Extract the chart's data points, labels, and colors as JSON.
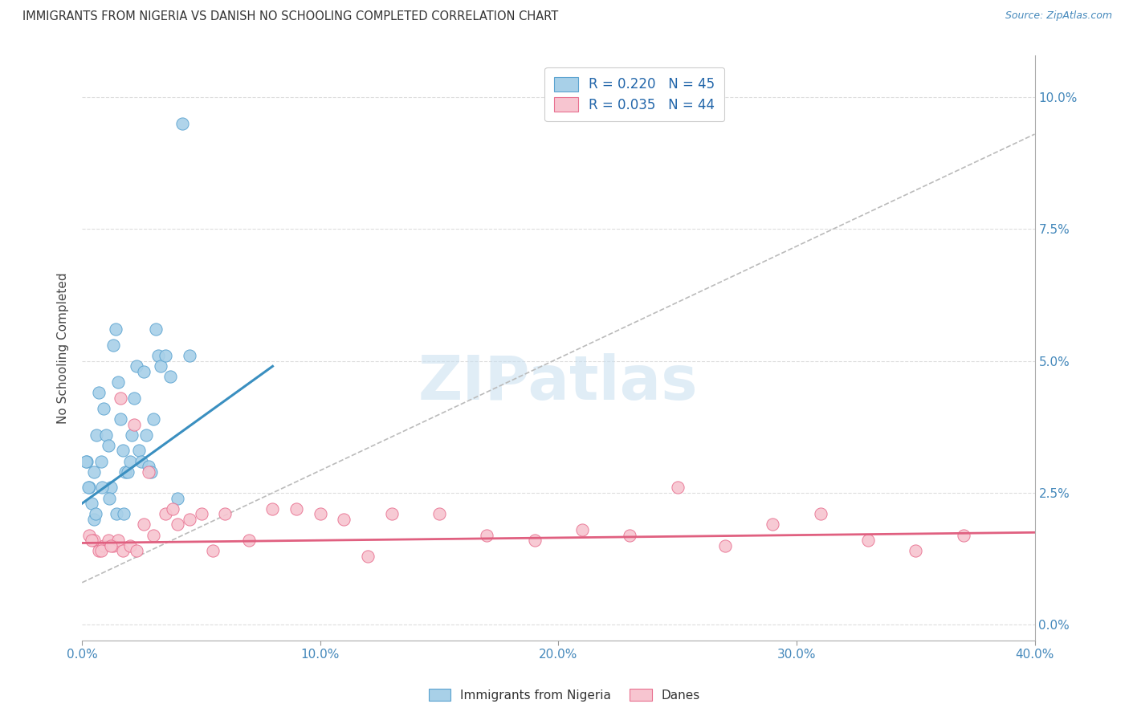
{
  "title": "IMMIGRANTS FROM NIGERIA VS DANISH NO SCHOOLING COMPLETED CORRELATION CHART",
  "source": "Source: ZipAtlas.com",
  "ylabel": "No Schooling Completed",
  "legend_line1": "R = 0.220   N = 45",
  "legend_line2": "R = 0.035   N = 44",
  "legend_label1": "Immigrants from Nigeria",
  "legend_label2": "Danes",
  "blue_color": "#A8D0E8",
  "blue_edge": "#5BA3D0",
  "pink_color": "#F7C5D0",
  "pink_edge": "#E87090",
  "trendline_blue": "#3A8FC0",
  "trendline_pink": "#E06080",
  "trendline_gray": "#BBBBBB",
  "watermark": "ZIPatlas",
  "xlim": [
    0.0,
    40.0
  ],
  "ylim": [
    -0.3,
    10.8
  ],
  "xtick_positions": [
    0,
    10,
    20,
    30,
    40
  ],
  "ytick_vals": [
    0.0,
    2.5,
    5.0,
    7.5,
    10.0
  ],
  "nigeria_x": [
    0.2,
    0.3,
    0.4,
    0.5,
    0.5,
    0.6,
    0.7,
    0.8,
    0.9,
    1.0,
    1.1,
    1.2,
    1.3,
    1.4,
    1.5,
    1.6,
    1.7,
    1.8,
    1.9,
    2.0,
    2.1,
    2.2,
    2.3,
    2.4,
    2.5,
    2.6,
    2.7,
    2.8,
    2.9,
    3.0,
    3.1,
    3.2,
    3.3,
    3.5,
    3.7,
    4.0,
    4.2,
    4.5,
    0.15,
    0.25,
    0.55,
    0.85,
    1.15,
    1.45,
    1.75
  ],
  "nigeria_y": [
    3.1,
    2.6,
    2.3,
    2.9,
    2.0,
    3.6,
    4.4,
    3.1,
    4.1,
    3.6,
    3.4,
    2.6,
    5.3,
    5.6,
    4.6,
    3.9,
    3.3,
    2.9,
    2.9,
    3.1,
    3.6,
    4.3,
    4.9,
    3.3,
    3.1,
    4.8,
    3.6,
    3.0,
    2.9,
    3.9,
    5.6,
    5.1,
    4.9,
    5.1,
    4.7,
    2.4,
    9.5,
    5.1,
    3.1,
    2.6,
    2.1,
    2.6,
    2.4,
    2.1,
    2.1
  ],
  "danes_x": [
    0.3,
    0.5,
    0.7,
    0.9,
    1.1,
    1.3,
    1.5,
    1.7,
    2.0,
    2.3,
    2.6,
    3.0,
    3.5,
    4.0,
    4.5,
    5.0,
    6.0,
    7.0,
    8.0,
    9.0,
    10.0,
    11.0,
    13.0,
    15.0,
    17.0,
    19.0,
    21.0,
    23.0,
    25.0,
    27.0,
    29.0,
    31.0,
    33.0,
    35.0,
    37.0,
    0.4,
    0.8,
    1.2,
    1.6,
    2.2,
    2.8,
    3.8,
    5.5,
    12.0
  ],
  "danes_y": [
    1.7,
    1.6,
    1.4,
    1.5,
    1.6,
    1.5,
    1.6,
    1.4,
    1.5,
    1.4,
    1.9,
    1.7,
    2.1,
    1.9,
    2.0,
    2.1,
    2.1,
    1.6,
    2.2,
    2.2,
    2.1,
    2.0,
    2.1,
    2.1,
    1.7,
    1.6,
    1.8,
    1.7,
    2.6,
    1.5,
    1.9,
    2.1,
    1.6,
    1.4,
    1.7,
    1.6,
    1.4,
    1.5,
    4.3,
    3.8,
    2.9,
    2.2,
    1.4,
    1.3
  ],
  "nigeria_trend": [
    0.0,
    2.3,
    8.0,
    4.9
  ],
  "danes_trend": [
    0.0,
    1.55,
    40.0,
    1.75
  ],
  "gray_dashed": [
    0.0,
    0.8,
    40.0,
    9.3
  ]
}
